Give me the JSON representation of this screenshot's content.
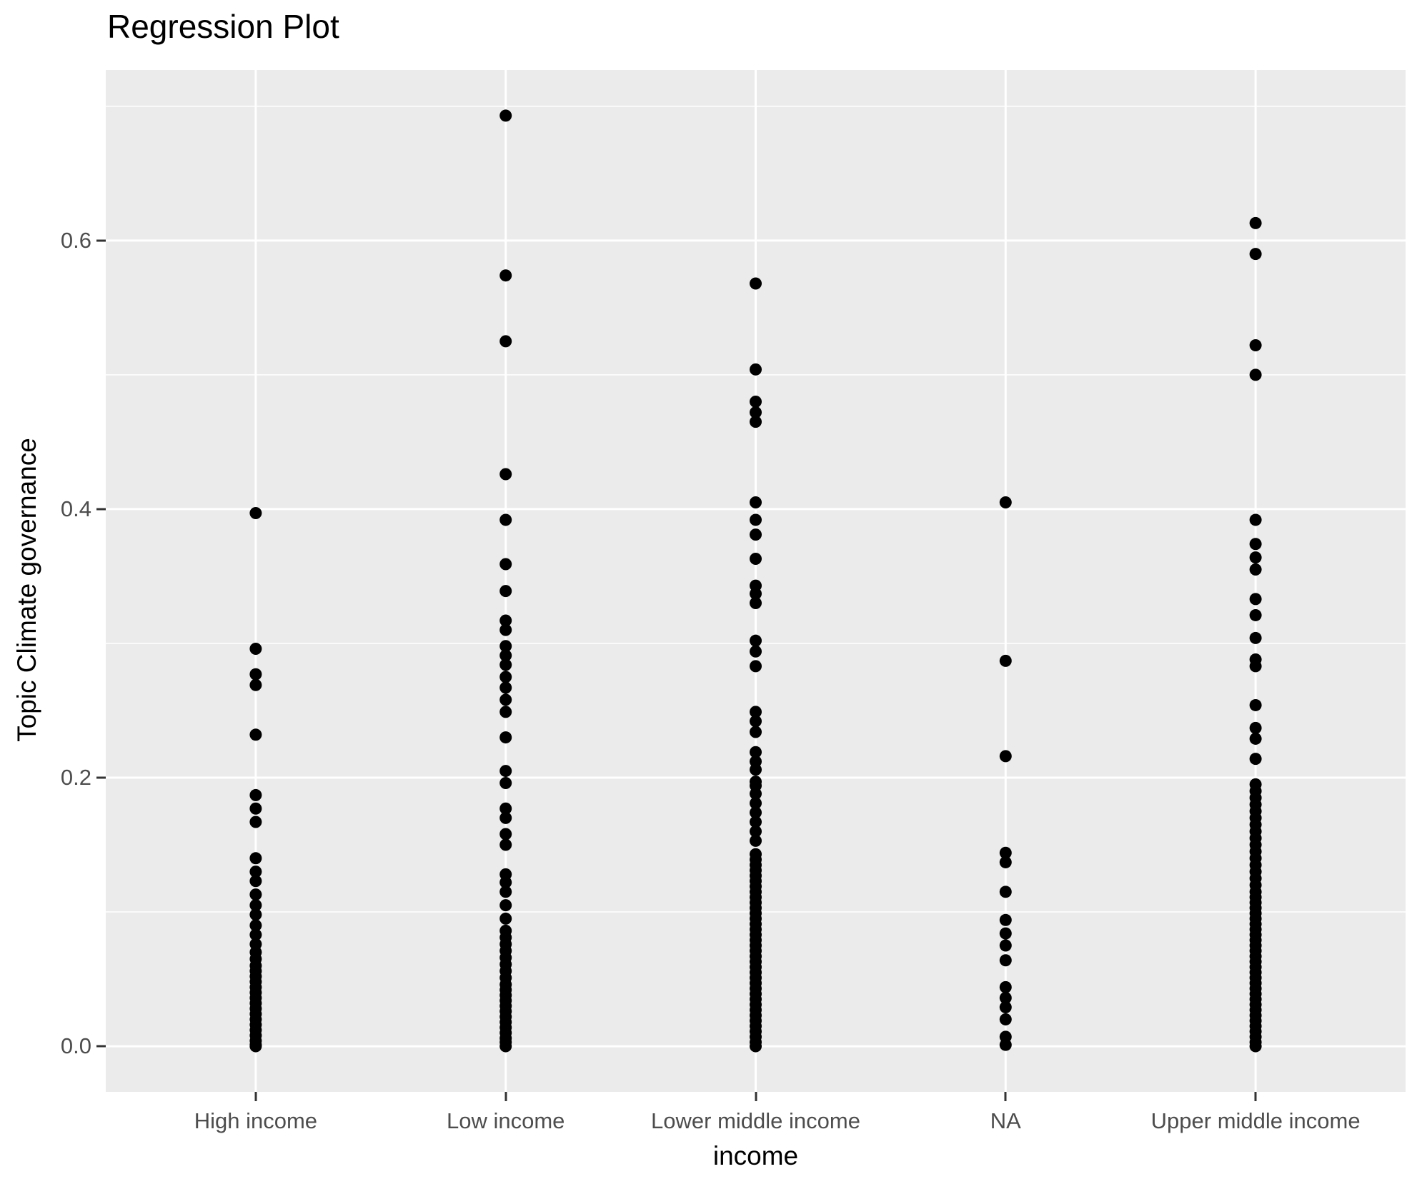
{
  "title": "Regression Plot",
  "colors": {
    "figure_bg": "#FFFFFF",
    "panel_bg": "#EBEBEB",
    "grid": "#FFFFFF",
    "point": "#000000",
    "tick_mark": "#333333",
    "tick_label": "#4D4D4D",
    "title_text": "#000000"
  },
  "chart_data": {
    "type": "scatter",
    "subtype": "strip-plot",
    "title": "Regression Plot",
    "xlabel": "income",
    "ylabel": "Topic Climate governance",
    "legend": false,
    "grid": true,
    "categories": [
      "High income",
      "Low income",
      "Lower middle income",
      "NA",
      "Upper middle income"
    ],
    "y_major_ticks": [
      0.0,
      0.2,
      0.4,
      0.6
    ],
    "y_tick_labels": [
      "0.0",
      "0.2",
      "0.4",
      "0.6"
    ],
    "y_minor_ticks": [
      0.1,
      0.3,
      0.5,
      0.7
    ],
    "ylim": [
      -0.034,
      0.727
    ],
    "point_radius_px": 8.5,
    "series": [
      {
        "name": "High income",
        "values": [
          0.397,
          0.296,
          0.277,
          0.269,
          0.232,
          0.187,
          0.177,
          0.167,
          0.14,
          0.13,
          0.123,
          0.113,
          0.105,
          0.098,
          0.09,
          0.083,
          0.076,
          0.07,
          0.065,
          0.06,
          0.056,
          0.052,
          0.048,
          0.044,
          0.04,
          0.036,
          0.032,
          0.028,
          0.024,
          0.02,
          0.016,
          0.012,
          0.008,
          0.004,
          0.001,
          0.0
        ]
      },
      {
        "name": "Low income",
        "values": [
          0.693,
          0.574,
          0.525,
          0.426,
          0.392,
          0.359,
          0.339,
          0.317,
          0.31,
          0.298,
          0.291,
          0.284,
          0.275,
          0.267,
          0.258,
          0.249,
          0.23,
          0.205,
          0.196,
          0.177,
          0.17,
          0.158,
          0.15,
          0.128,
          0.122,
          0.115,
          0.105,
          0.095,
          0.086,
          0.081,
          0.076,
          0.071,
          0.066,
          0.061,
          0.056,
          0.051,
          0.046,
          0.042,
          0.038,
          0.034,
          0.03,
          0.026,
          0.022,
          0.018,
          0.014,
          0.01,
          0.006,
          0.003,
          0.0
        ]
      },
      {
        "name": "Lower middle income",
        "values": [
          0.568,
          0.504,
          0.48,
          0.472,
          0.465,
          0.405,
          0.392,
          0.381,
          0.363,
          0.343,
          0.337,
          0.33,
          0.302,
          0.294,
          0.283,
          0.249,
          0.242,
          0.234,
          0.219,
          0.212,
          0.206,
          0.197,
          0.194,
          0.188,
          0.181,
          0.174,
          0.167,
          0.16,
          0.153,
          0.143,
          0.139,
          0.135,
          0.131,
          0.127,
          0.123,
          0.119,
          0.115,
          0.111,
          0.107,
          0.103,
          0.099,
          0.095,
          0.091,
          0.087,
          0.083,
          0.079,
          0.075,
          0.071,
          0.067,
          0.063,
          0.059,
          0.055,
          0.051,
          0.047,
          0.043,
          0.039,
          0.035,
          0.031,
          0.027,
          0.023,
          0.019,
          0.015,
          0.011,
          0.007,
          0.003,
          0.0
        ]
      },
      {
        "name": "NA",
        "values": [
          0.405,
          0.287,
          0.216,
          0.144,
          0.137,
          0.115,
          0.094,
          0.084,
          0.075,
          0.064,
          0.044,
          0.036,
          0.029,
          0.02,
          0.007,
          0.001
        ]
      },
      {
        "name": "Upper middle income",
        "values": [
          0.613,
          0.59,
          0.522,
          0.5,
          0.392,
          0.374,
          0.364,
          0.355,
          0.333,
          0.321,
          0.304,
          0.288,
          0.283,
          0.254,
          0.237,
          0.229,
          0.214,
          0.195,
          0.19,
          0.185,
          0.18,
          0.175,
          0.17,
          0.165,
          0.16,
          0.155,
          0.15,
          0.145,
          0.14,
          0.135,
          0.13,
          0.125,
          0.12,
          0.115,
          0.111,
          0.107,
          0.103,
          0.099,
          0.095,
          0.091,
          0.087,
          0.083,
          0.079,
          0.075,
          0.071,
          0.067,
          0.063,
          0.059,
          0.055,
          0.051,
          0.047,
          0.043,
          0.039,
          0.035,
          0.031,
          0.027,
          0.023,
          0.019,
          0.015,
          0.011,
          0.007,
          0.003,
          0.0
        ]
      }
    ]
  }
}
